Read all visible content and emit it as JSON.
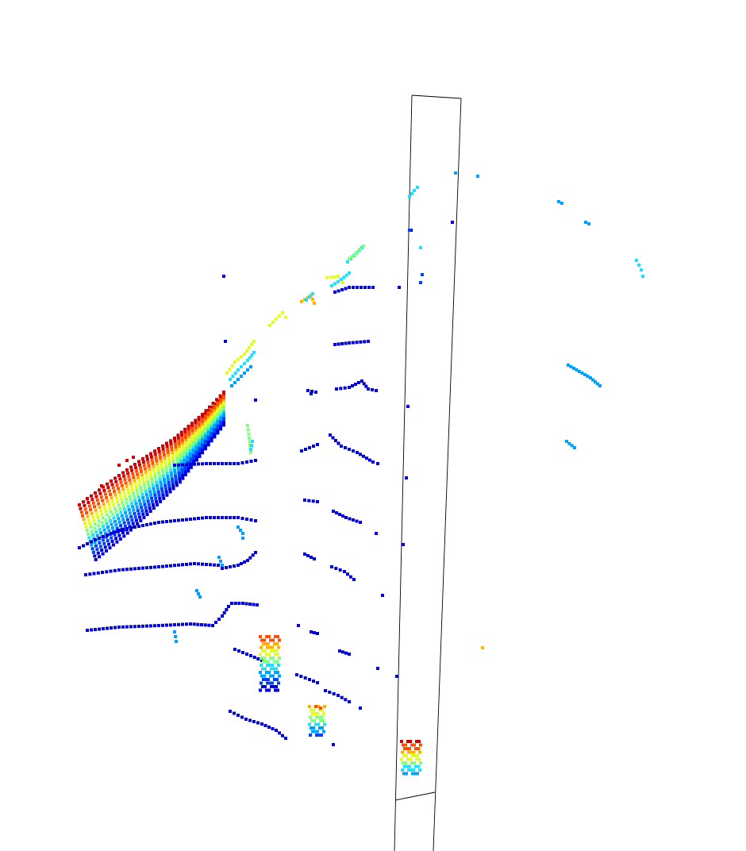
{
  "view": {
    "background": "#ffffff",
    "outline_color": "#000000",
    "colormap": [
      "#00008f",
      "#0000d6",
      "#0040ff",
      "#00a0ff",
      "#20e0ff",
      "#80ff80",
      "#e0ff20",
      "#ffb000",
      "#ff5000",
      "#d00000"
    ]
  }
}
